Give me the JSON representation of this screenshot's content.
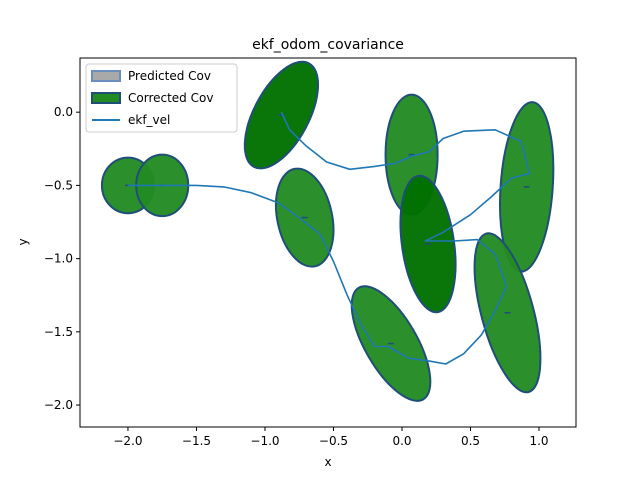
{
  "chart_data": {
    "type": "scatter",
    "title": "ekf_odom_covariance",
    "xlabel": "x",
    "ylabel": "y",
    "xlim": [
      -2.35,
      1.27
    ],
    "ylim": [
      -2.15,
      0.37
    ],
    "xticks": [
      -2.0,
      -1.5,
      -1.0,
      -0.5,
      0.0,
      0.5,
      1.0
    ],
    "xtick_labels": [
      "−2.0",
      "−1.5",
      "−1.0",
      "−0.5",
      "0.0",
      "0.5",
      "1.0"
    ],
    "yticks": [
      0.0,
      -0.5,
      -1.0,
      -1.5,
      -2.0
    ],
    "ytick_labels": [
      "0.0",
      "−0.5",
      "−1.0",
      "−1.5",
      "−2.0"
    ],
    "legend_position": "upper-left",
    "legend": [
      {
        "label": "Predicted Cov",
        "kind": "patch",
        "face": "#a9a9a9",
        "edge": "#6c8ebf"
      },
      {
        "label": "Corrected Cov",
        "kind": "patch",
        "face": "#228b22",
        "edge": "#1f4e79"
      },
      {
        "label": "ekf_vel",
        "kind": "line",
        "color": "#1f77b4"
      }
    ],
    "colors": {
      "predicted_face": "#a9a9a9",
      "corrected_face": "#228b22",
      "corrected_face_dark": "#007000",
      "ellipse_edge": "#1f4e79",
      "line": "#1f77b4"
    },
    "ellipses": [
      {
        "type": "corrected",
        "cx": -2.0,
        "cy": -0.5,
        "w": 0.19,
        "h": 0.19,
        "angle": 0
      },
      {
        "type": "corrected",
        "cx": -1.75,
        "cy": -0.5,
        "w": 0.19,
        "h": 0.21,
        "angle": 0
      },
      {
        "type": "corrected",
        "cx": -0.88,
        "cy": -0.02,
        "w": 0.2,
        "h": 0.4,
        "angle": 28,
        "dark": true
      },
      {
        "type": "corrected",
        "cx": -0.71,
        "cy": -0.72,
        "w": 0.2,
        "h": 0.34,
        "angle": -12
      },
      {
        "type": "corrected",
        "cx": 0.07,
        "cy": -0.29,
        "w": 0.19,
        "h": 0.41,
        "angle": 0
      },
      {
        "type": "corrected",
        "cx": 0.19,
        "cy": -0.9,
        "w": 0.19,
        "h": 0.47,
        "angle": -8,
        "dark": true
      },
      {
        "type": "corrected",
        "cx": 0.91,
        "cy": -0.51,
        "w": 0.19,
        "h": 0.58,
        "angle": 4
      },
      {
        "type": "corrected",
        "cx": 0.77,
        "cy": -1.37,
        "w": 0.19,
        "h": 0.56,
        "angle": -15
      },
      {
        "type": "corrected",
        "cx": -0.08,
        "cy": -1.58,
        "w": 0.19,
        "h": 0.44,
        "angle": -30
      }
    ],
    "ekf_vel": {
      "x": [
        -2.0,
        -1.75,
        -1.5,
        -1.3,
        -1.1,
        -0.9,
        -0.75,
        -0.6,
        -0.5,
        -0.4,
        -0.3,
        -0.2,
        -0.1,
        0.05,
        0.2,
        0.32,
        0.45,
        0.58,
        0.7,
        0.76,
        0.75,
        0.68,
        0.55,
        0.38,
        0.25,
        0.17,
        0.3,
        0.5,
        0.65,
        0.8,
        0.93,
        0.87,
        0.68,
        0.45,
        0.3,
        0.2,
        0.07,
        -0.05,
        -0.2,
        -0.38,
        -0.55,
        -0.7,
        -0.82,
        -0.88
      ],
      "y": [
        -0.5,
        -0.5,
        -0.5,
        -0.51,
        -0.55,
        -0.62,
        -0.72,
        -0.83,
        -1.02,
        -1.25,
        -1.45,
        -1.6,
        -1.6,
        -1.68,
        -1.7,
        -1.72,
        -1.65,
        -1.52,
        -1.32,
        -1.2,
        -1.15,
        -0.97,
        -0.87,
        -0.88,
        -0.88,
        -0.88,
        -0.82,
        -0.7,
        -0.58,
        -0.45,
        -0.42,
        -0.2,
        -0.12,
        -0.13,
        -0.18,
        -0.27,
        -0.3,
        -0.35,
        -0.37,
        -0.39,
        -0.34,
        -0.23,
        -0.12,
        0.0
      ]
    },
    "grid": false
  }
}
